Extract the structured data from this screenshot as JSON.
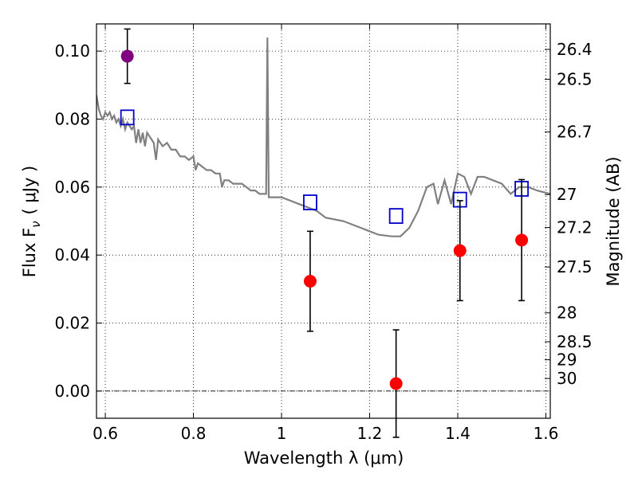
{
  "chart_data": {
    "type": "scatter",
    "title": "",
    "xlabel": "Wavelength  λ (μm)",
    "ylabel": "Flux  F",
    "ylabel_sub": "ν",
    "ylabel_unit": "( μJy )",
    "y2label": "Magnitude (AB)",
    "xlim": [
      0.58,
      1.61
    ],
    "ylim": [
      -0.008,
      0.108
    ],
    "grid": true,
    "x_ticks": [
      0.6,
      0.8,
      1.0,
      1.2,
      1.4,
      1.6
    ],
    "x_tick_labels": [
      "0.6",
      "0.8",
      "1",
      "1.2",
      "1.4",
      "1.6"
    ],
    "y_ticks": [
      0.0,
      0.02,
      0.04,
      0.06,
      0.08,
      0.1
    ],
    "y_tick_labels": [
      "0.00",
      "0.02",
      "0.04",
      "0.06",
      "0.08",
      "0.10"
    ],
    "magnitude_ticks": [
      {
        "label": "26.4",
        "flux": 0.1005
      },
      {
        "label": "26.5",
        "flux": 0.0917
      },
      {
        "label": "26.7",
        "flux": 0.0762
      },
      {
        "label": "27",
        "flux": 0.0578
      },
      {
        "label": "27.2",
        "flux": 0.0481
      },
      {
        "label": "27.5",
        "flux": 0.0365
      },
      {
        "label": "28",
        "flux": 0.023
      },
      {
        "label": "28.5",
        "flux": 0.0145
      },
      {
        "label": "29",
        "flux": 0.0092
      },
      {
        "label": "30",
        "flux": 0.0037
      }
    ],
    "zero_line": 0.0,
    "series": [
      {
        "name": "model-spectrum",
        "style": "line",
        "color": "#808080",
        "points": [
          [
            0.58,
            0.087
          ],
          [
            0.585,
            0.083
          ],
          [
            0.59,
            0.081
          ],
          [
            0.595,
            0.08
          ],
          [
            0.6,
            0.082
          ],
          [
            0.605,
            0.081
          ],
          [
            0.61,
            0.082
          ],
          [
            0.615,
            0.08
          ],
          [
            0.62,
            0.081
          ],
          [
            0.625,
            0.079
          ],
          [
            0.63,
            0.08
          ],
          [
            0.635,
            0.078
          ],
          [
            0.64,
            0.08
          ],
          [
            0.645,
            0.077
          ],
          [
            0.65,
            0.079
          ],
          [
            0.655,
            0.078
          ],
          [
            0.66,
            0.077
          ],
          [
            0.665,
            0.078
          ],
          [
            0.67,
            0.073
          ],
          [
            0.675,
            0.077
          ],
          [
            0.68,
            0.073
          ],
          [
            0.685,
            0.076
          ],
          [
            0.69,
            0.072
          ],
          [
            0.695,
            0.076
          ],
          [
            0.7,
            0.075
          ],
          [
            0.705,
            0.074
          ],
          [
            0.71,
            0.073
          ],
          [
            0.715,
            0.068
          ],
          [
            0.72,
            0.074
          ],
          [
            0.725,
            0.073
          ],
          [
            0.73,
            0.072
          ],
          [
            0.74,
            0.073
          ],
          [
            0.75,
            0.071
          ],
          [
            0.76,
            0.071
          ],
          [
            0.77,
            0.069
          ],
          [
            0.78,
            0.069
          ],
          [
            0.79,
            0.068
          ],
          [
            0.8,
            0.069
          ],
          [
            0.805,
            0.065
          ],
          [
            0.81,
            0.067
          ],
          [
            0.82,
            0.066
          ],
          [
            0.83,
            0.065
          ],
          [
            0.84,
            0.065
          ],
          [
            0.85,
            0.064
          ],
          [
            0.86,
            0.064
          ],
          [
            0.865,
            0.06
          ],
          [
            0.87,
            0.062
          ],
          [
            0.88,
            0.062
          ],
          [
            0.89,
            0.061
          ],
          [
            0.9,
            0.061
          ],
          [
            0.91,
            0.061
          ],
          [
            0.92,
            0.06
          ],
          [
            0.93,
            0.059
          ],
          [
            0.94,
            0.059
          ],
          [
            0.95,
            0.058
          ],
          [
            0.96,
            0.058
          ],
          [
            0.965,
            0.058
          ],
          [
            0.968,
            0.104
          ],
          [
            0.971,
            0.057
          ],
          [
            0.98,
            0.057
          ],
          [
            1.0,
            0.057
          ],
          [
            1.02,
            0.056
          ],
          [
            1.04,
            0.055
          ],
          [
            1.06,
            0.054
          ],
          [
            1.08,
            0.053
          ],
          [
            1.1,
            0.051
          ],
          [
            1.14,
            0.05
          ],
          [
            1.18,
            0.048
          ],
          [
            1.2,
            0.047
          ],
          [
            1.22,
            0.046
          ],
          [
            1.25,
            0.0455
          ],
          [
            1.27,
            0.0455
          ],
          [
            1.29,
            0.048
          ],
          [
            1.31,
            0.053
          ],
          [
            1.33,
            0.06
          ],
          [
            1.345,
            0.061
          ],
          [
            1.355,
            0.055
          ],
          [
            1.37,
            0.062
          ],
          [
            1.385,
            0.055
          ],
          [
            1.4,
            0.064
          ],
          [
            1.415,
            0.063
          ],
          [
            1.43,
            0.058
          ],
          [
            1.445,
            0.063
          ],
          [
            1.46,
            0.063
          ],
          [
            1.48,
            0.062
          ],
          [
            1.5,
            0.061
          ],
          [
            1.52,
            0.058
          ],
          [
            1.54,
            0.06
          ],
          [
            1.56,
            0.06
          ],
          [
            1.58,
            0.059
          ],
          [
            1.61,
            0.058
          ]
        ]
      },
      {
        "name": "model-photometry",
        "style": "open-square",
        "color": "#0000cc",
        "points": [
          [
            0.65,
            0.0805
          ],
          [
            1.065,
            0.0555
          ],
          [
            1.26,
            0.0515
          ],
          [
            1.405,
            0.0563
          ],
          [
            1.545,
            0.0595
          ]
        ]
      },
      {
        "name": "observed-detection",
        "style": "circle-errorbar",
        "color": "#800080",
        "points": [
          {
            "x": 0.65,
            "y": 0.0985,
            "err": 0.008
          }
        ]
      },
      {
        "name": "observed-photometry",
        "style": "circle-errorbar",
        "color": "#ff0000",
        "points": [
          {
            "x": 1.065,
            "y": 0.0323,
            "err": 0.0147
          },
          {
            "x": 1.26,
            "y": 0.0022,
            "err": 0.0158
          },
          {
            "x": 1.405,
            "y": 0.0413,
            "err": 0.0147
          },
          {
            "x": 1.545,
            "y": 0.0444,
            "err": 0.0178
          }
        ]
      }
    ]
  }
}
